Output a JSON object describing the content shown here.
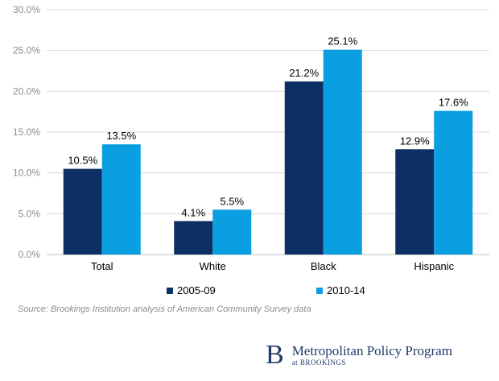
{
  "chart_data": {
    "type": "bar",
    "categories": [
      "Total",
      "White",
      "Black",
      "Hispanic"
    ],
    "series": [
      {
        "name": "2005-09",
        "values": [
          10.5,
          4.1,
          21.2,
          12.9
        ],
        "color": "#0e2f63"
      },
      {
        "name": "2010-14",
        "values": [
          13.5,
          5.5,
          25.1,
          17.6
        ],
        "color": "#0a9fe0"
      }
    ],
    "data_labels": [
      [
        "10.5%",
        "4.1%",
        "21.2%",
        "12.9%"
      ],
      [
        "13.5%",
        "5.5%",
        "25.1%",
        "17.6%"
      ]
    ],
    "ylim": [
      0,
      30
    ],
    "yticks": [
      "0.0%",
      "5.0%",
      "10.0%",
      "15.0%",
      "20.0%",
      "25.0%",
      "30.0%"
    ],
    "grid": true,
    "legend_position": "bottom"
  },
  "source": "Source: Brookings Institution analysis of American Community Survey data",
  "logo": {
    "mark": "B",
    "line1": "Metropolitan Policy Program",
    "line2": "at BROOKINGS"
  }
}
